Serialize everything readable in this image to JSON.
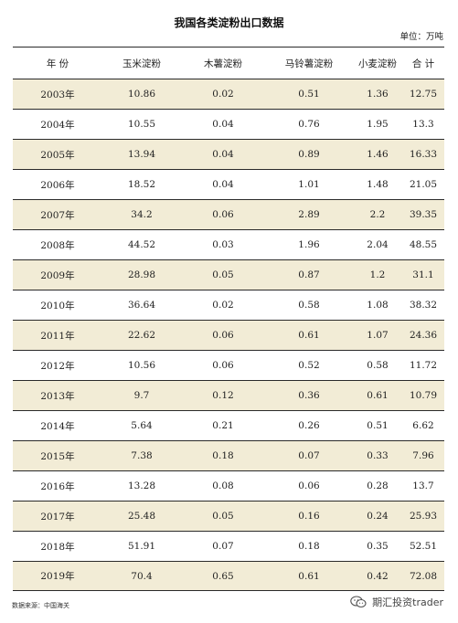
{
  "title": "我国各类淀粉出口数据",
  "unit": "单位：万吨",
  "headers": [
    "年 份",
    "玉米淀粉",
    "木薯淀粉",
    "马铃薯淀粉",
    "小麦淀粉",
    "合 计"
  ],
  "rows": [
    [
      "2003年",
      "10.86",
      "0.02",
      "0.51",
      "1.36",
      "12.75"
    ],
    [
      "2004年",
      "10.55",
      "0.04",
      "0.76",
      "1.95",
      "13.3"
    ],
    [
      "2005年",
      "13.94",
      "0.04",
      "0.89",
      "1.46",
      "16.33"
    ],
    [
      "2006年",
      "18.52",
      "0.04",
      "1.01",
      "1.48",
      "21.05"
    ],
    [
      "2007年",
      "34.2",
      "0.06",
      "2.89",
      "2.2",
      "39.35"
    ],
    [
      "2008年",
      "44.52",
      "0.03",
      "1.96",
      "2.04",
      "48.55"
    ],
    [
      "2009年",
      "28.98",
      "0.05",
      "0.87",
      "1.2",
      "31.1"
    ],
    [
      "2010年",
      "36.64",
      "0.02",
      "0.58",
      "1.08",
      "38.32"
    ],
    [
      "2011年",
      "22.62",
      "0.06",
      "0.61",
      "1.07",
      "24.36"
    ],
    [
      "2012年",
      "10.56",
      "0.06",
      "0.52",
      "0.58",
      "11.72"
    ],
    [
      "2013年",
      "9.7",
      "0.12",
      "0.36",
      "0.61",
      "10.79"
    ],
    [
      "2014年",
      "5.64",
      "0.21",
      "0.26",
      "0.51",
      "6.62"
    ],
    [
      "2015年",
      "7.38",
      "0.18",
      "0.07",
      "0.33",
      "7.96"
    ],
    [
      "2016年",
      "13.28",
      "0.08",
      "0.06",
      "0.28",
      "13.7"
    ],
    [
      "2017年",
      "25.48",
      "0.05",
      "0.16",
      "0.24",
      "25.93"
    ],
    [
      "2018年",
      "51.91",
      "0.07",
      "0.18",
      "0.35",
      "52.51"
    ],
    [
      "2019年",
      "70.4",
      "0.65",
      "0.61",
      "0.42",
      "72.08"
    ]
  ],
  "footer": {
    "source": "数据来源：中国海关",
    "watermark": "期汇投资trader",
    "watermark_icon": "wechat-icon"
  },
  "colors": {
    "shaded_row": "#f2ecd6",
    "rule": "#2a2a2a"
  }
}
